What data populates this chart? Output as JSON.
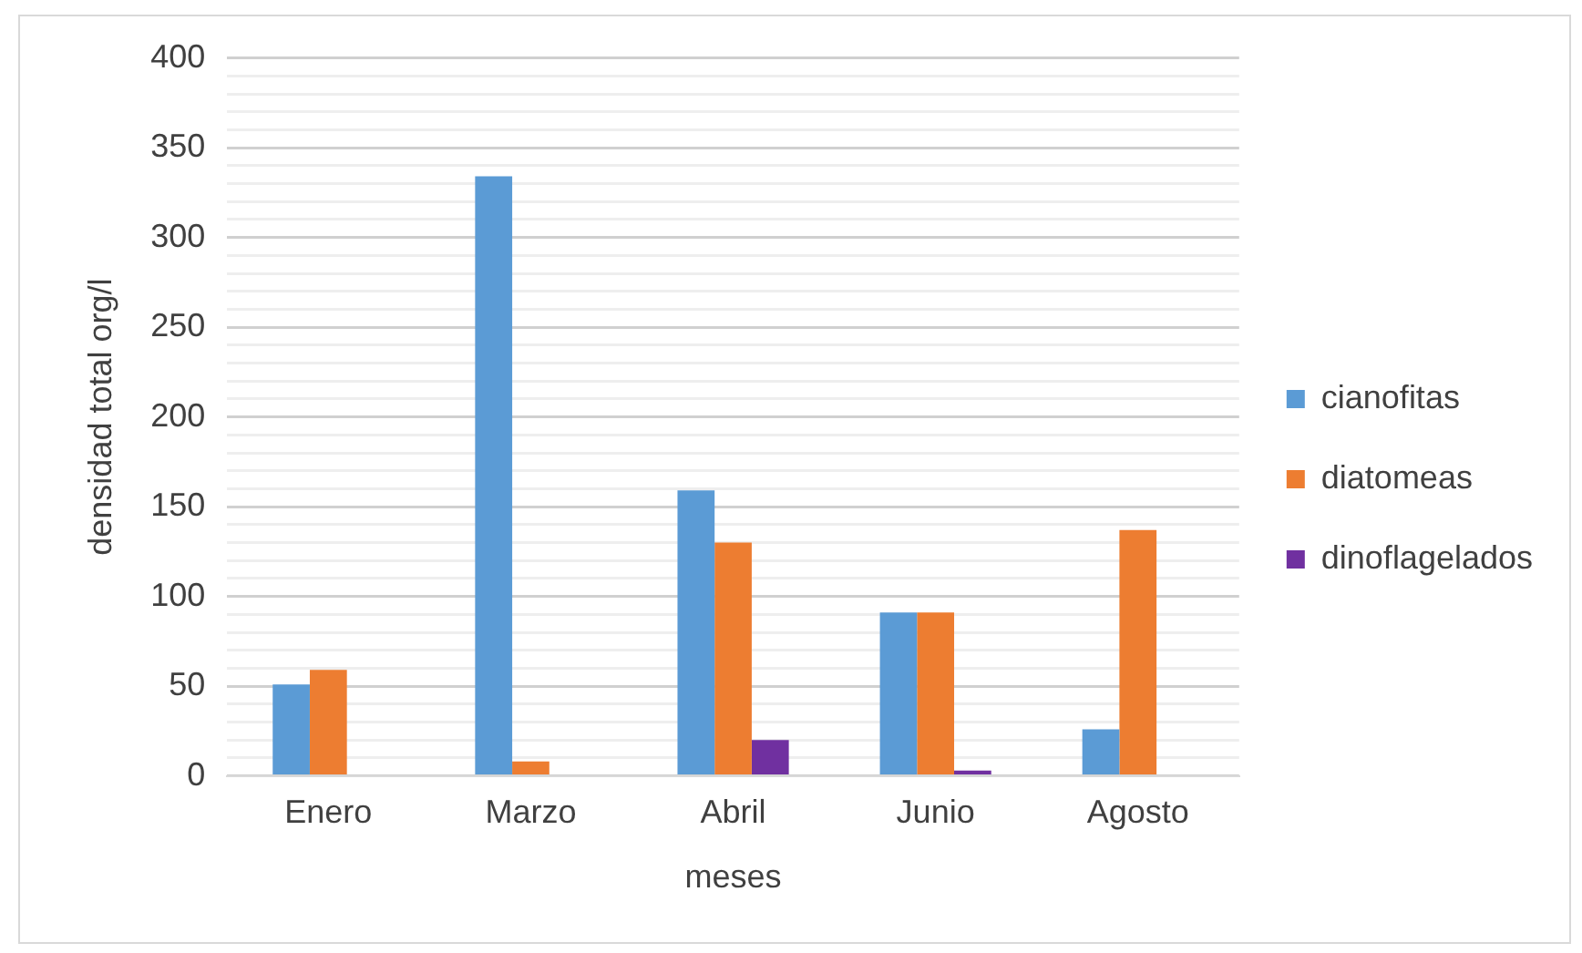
{
  "chart_data": {
    "type": "bar",
    "xlabel": "meses",
    "ylabel": "densidad total org/l",
    "categories": [
      "Enero",
      "Marzo",
      "Abril",
      "Junio",
      "Agosto"
    ],
    "series": [
      {
        "name": "cianofitas",
        "color": "#5b9bd5",
        "values": [
          51,
          334,
          159,
          91,
          26
        ]
      },
      {
        "name": "diatomeas",
        "color": "#ed7d31",
        "values": [
          59,
          8,
          130,
          91,
          137
        ]
      },
      {
        "name": "dinoflagelados",
        "color": "#7030a0",
        "values": [
          0,
          0,
          20,
          3,
          0
        ]
      }
    ],
    "ylim": [
      0,
      400
    ],
    "yticks": [
      0,
      {
        "value": 10,
        "label": null
      },
      {
        "value": 20,
        "label": null
      },
      {
        "value": 30,
        "label": null
      },
      {
        "value": 40,
        "label": null
      },
      50,
      {
        "value": 60,
        "label": null
      },
      {
        "value": 70,
        "label": null
      },
      {
        "value": 80,
        "label": null
      },
      {
        "value": 90,
        "label": null
      },
      100,
      {
        "value": 110,
        "label": null
      },
      {
        "value": 120,
        "label": null
      },
      {
        "value": 130,
        "label": null
      },
      {
        "value": 140,
        "label": null
      },
      150,
      {
        "value": 160,
        "label": null
      },
      {
        "value": 170,
        "label": null
      },
      {
        "value": 180,
        "label": null
      },
      {
        "value": 190,
        "label": null
      },
      200,
      {
        "value": 210,
        "label": null
      },
      {
        "value": 220,
        "label": null
      },
      {
        "value": 230,
        "label": null
      },
      {
        "value": 240,
        "label": null
      },
      250,
      {
        "value": 260,
        "label": null
      },
      {
        "value": 270,
        "label": null
      },
      {
        "value": 280,
        "label": null
      },
      {
        "value": 290,
        "label": null
      },
      300,
      {
        "value": 310,
        "label": null
      },
      {
        "value": 320,
        "label": null
      },
      {
        "value": 330,
        "label": null
      },
      {
        "value": 340,
        "label": null
      },
      350,
      {
        "value": 360,
        "label": null
      },
      {
        "value": 370,
        "label": null
      },
      {
        "value": 380,
        "label": null
      },
      {
        "value": 390,
        "label": null
      },
      400
    ],
    "grid": "y",
    "legend": "right"
  }
}
